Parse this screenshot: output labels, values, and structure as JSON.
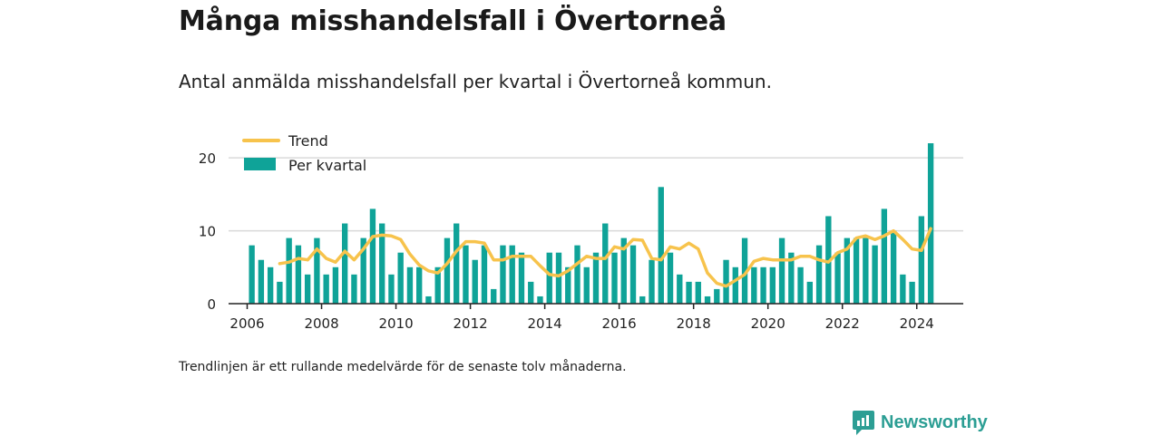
{
  "title": "Många misshandelsfall i Övertorneå",
  "subtitle": "Antal anmälda misshandelsfall per kvartal i Övertorneå kommun.",
  "footnote": "Trendlinjen är ett rullande medelvärde för de senaste tolv månaderna.",
  "brand": {
    "name": "Newsworthy",
    "icon": "newsworthy-logo-icon",
    "color": "#2c9e94"
  },
  "colors": {
    "bar": "#0fa398",
    "trend": "#f7c34c",
    "grid": "#d9d9d9",
    "axis": "#222222"
  },
  "chart_data": {
    "type": "bar",
    "xlabel": "",
    "ylabel": "",
    "xlim": [
      2005.5,
      2025.25
    ],
    "ylim": [
      0,
      23
    ],
    "yticks": [
      0,
      10,
      20
    ],
    "xticks": [
      "2006",
      "2008",
      "2010",
      "2012",
      "2014",
      "2016",
      "2018",
      "2020",
      "2022",
      "2024"
    ],
    "grid": true,
    "legend": {
      "position": "top-left",
      "trend_label": "Trend",
      "bars_label": "Per kvartal"
    },
    "series": [
      {
        "name": "Per kvartal",
        "type": "bar",
        "start_quarter": "2006 Q1",
        "values": [
          8,
          6,
          5,
          3,
          9,
          8,
          4,
          9,
          4,
          5,
          11,
          4,
          9,
          13,
          11,
          4,
          7,
          5,
          5,
          1,
          5,
          9,
          11,
          8,
          6,
          8,
          2,
          8,
          8,
          7,
          3,
          1,
          7,
          7,
          5,
          8,
          5,
          7,
          11,
          7,
          9,
          8,
          1,
          6,
          16,
          7,
          4,
          3,
          3,
          1,
          2,
          6,
          5,
          9,
          5,
          5,
          5,
          9,
          7,
          5,
          3,
          8,
          12,
          7,
          9,
          9,
          9,
          8,
          13,
          10,
          4,
          3,
          12,
          22
        ]
      },
      {
        "name": "Trend",
        "type": "line",
        "start_quarter": "2006 Q4",
        "values": [
          5.5,
          5.7,
          6.2,
          6.0,
          7.5,
          6.2,
          5.7,
          7.2,
          6.0,
          7.5,
          9.2,
          9.4,
          9.3,
          8.8,
          6.8,
          5.3,
          4.5,
          4.2,
          5.5,
          7.2,
          8.5,
          8.5,
          8.3,
          6.0,
          6.0,
          6.5,
          6.5,
          6.5,
          5.2,
          4.0,
          3.8,
          4.5,
          5.5,
          6.5,
          6.2,
          6.2,
          7.8,
          7.5,
          8.8,
          8.7,
          6.2,
          6.0,
          7.8,
          7.5,
          8.3,
          7.5,
          4.2,
          2.8,
          2.4,
          3.2,
          4.0,
          5.8,
          6.2,
          6.0,
          6.0,
          6.0,
          6.5,
          6.5,
          6.0,
          5.7,
          7.0,
          7.5,
          9.0,
          9.3,
          8.8,
          9.3,
          10.0,
          8.8,
          7.5,
          7.3,
          10.3
        ]
      }
    ]
  }
}
